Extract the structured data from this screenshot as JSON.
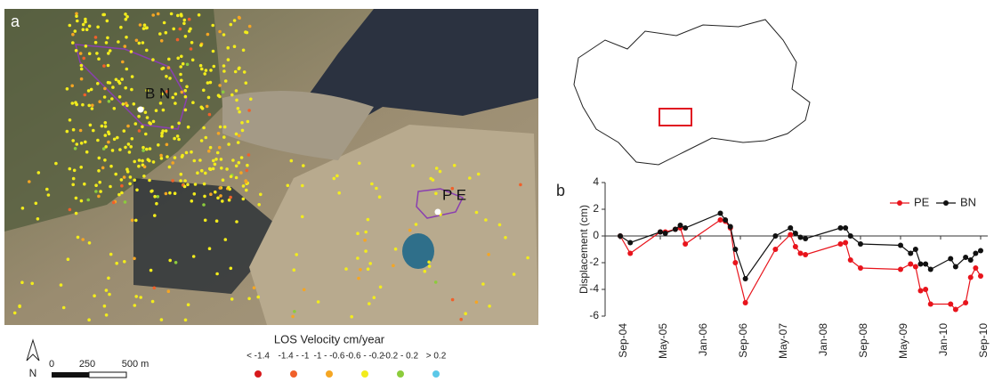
{
  "map": {
    "panel_label": "a",
    "site_bn": "B N",
    "site_pe": "P E",
    "north": "N",
    "scale": [
      "0",
      "250",
      "500 m"
    ],
    "legend_title": "LOS Velocity cm/year",
    "classes": [
      {
        "label": "< -1.4",
        "color": "#d7191c"
      },
      {
        "label": "-1.4 - -1",
        "color": "#f0602a"
      },
      {
        "label": "-1 - -0.6",
        "color": "#f5a623"
      },
      {
        "label": "-0.6 - -0.2",
        "color": "#f2ec1c"
      },
      {
        "label": "-0.2 - 0.2",
        "color": "#8ccc3c"
      },
      {
        "label": "> 0.2",
        "color": "#5bc8e8"
      }
    ]
  },
  "chart_data": {
    "type": "line",
    "panel_label": "b",
    "ylabel": "Displacement (cm)",
    "x": [
      "2004-09",
      "2004-11",
      "2005-05",
      "2005-06",
      "2005-08",
      "2005-09",
      "2005-10",
      "2006-05",
      "2006-06",
      "2006-07",
      "2006-08",
      "2006-10",
      "2007-04",
      "2007-07",
      "2007-08",
      "2007-09",
      "2007-10",
      "2008-05",
      "2008-06",
      "2008-07",
      "2008-09",
      "2009-05",
      "2009-07",
      "2009-08",
      "2009-09",
      "2009-10",
      "2009-11",
      "2010-03",
      "2010-04",
      "2010-06",
      "2010-07",
      "2010-08",
      "2010-09"
    ],
    "series": [
      {
        "name": "PE",
        "color": "#e8141c",
        "values": [
          0,
          -1.3,
          0.3,
          0.3,
          0.5,
          0.6,
          -0.6,
          1.2,
          1.1,
          0.6,
          -2.0,
          -5.0,
          -1.0,
          0.1,
          -0.8,
          -1.3,
          -1.4,
          -0.6,
          -0.5,
          -1.8,
          -2.4,
          -2.5,
          -2.1,
          -2.3,
          -4.1,
          -4.0,
          -5.1,
          -5.1,
          -5.5,
          -5.0,
          -3.1,
          -2.4,
          -3.0
        ]
      },
      {
        "name": "BN",
        "color": "#111111",
        "values": [
          0,
          -0.5,
          0.3,
          0.2,
          0.5,
          0.8,
          0.6,
          1.7,
          1.2,
          0.7,
          -1.0,
          -3.2,
          0,
          0.6,
          0.2,
          -0.1,
          -0.2,
          0.6,
          0.6,
          0,
          -0.6,
          -0.7,
          -1.3,
          -1.0,
          -2.1,
          -2.1,
          -2.5,
          -1.7,
          -2.3,
          -1.6,
          -1.8,
          -1.3,
          -1.1
        ]
      }
    ],
    "xlim": [
      "2004-09",
      "2010-09"
    ],
    "xticks": [
      {
        "value": "2004-09",
        "label": "Sep-04"
      },
      {
        "value": "2005-05",
        "label": "May-05"
      },
      {
        "value": "2006-01",
        "label": "Jan-06"
      },
      {
        "value": "2006-09",
        "label": "Sep-06"
      },
      {
        "value": "2007-05",
        "label": "May-07"
      },
      {
        "value": "2008-01",
        "label": "Jan-08"
      },
      {
        "value": "2008-09",
        "label": "Sep-08"
      },
      {
        "value": "2009-05",
        "label": "May-09"
      },
      {
        "value": "2010-01",
        "label": "Jan-10"
      },
      {
        "value": "2010-09",
        "label": "Sep-10"
      }
    ],
    "ylim": [
      -6,
      4
    ],
    "yticks": [
      4,
      2,
      0,
      -2,
      -4,
      -6
    ],
    "legend": "top-right"
  }
}
